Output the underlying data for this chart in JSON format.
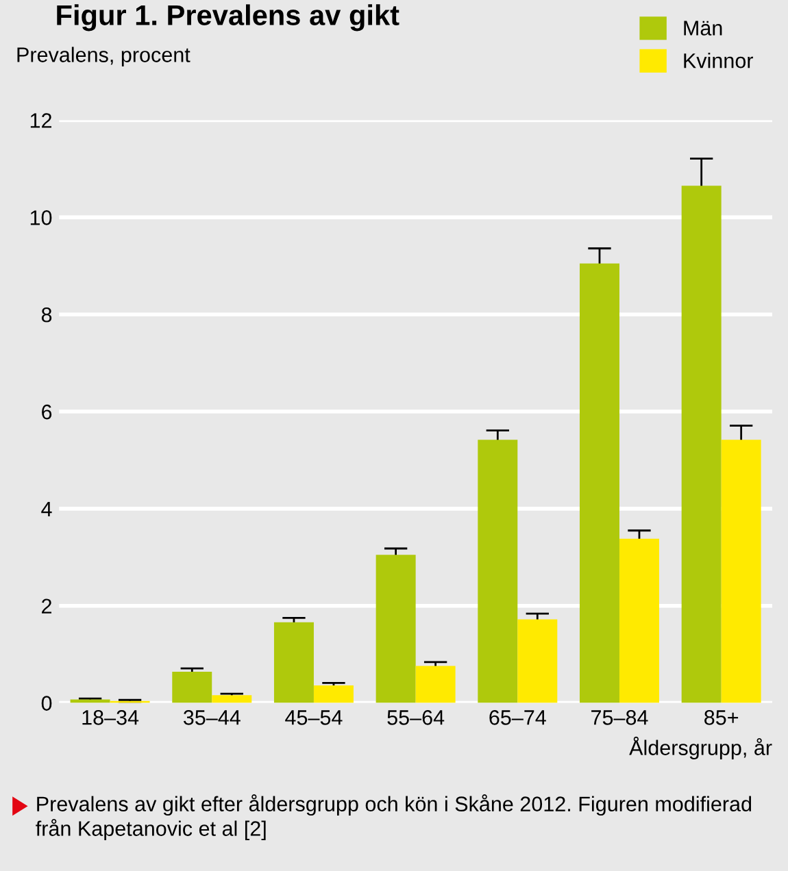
{
  "chart_data": {
    "type": "bar",
    "title": "Figur 1. Prevalens av gikt",
    "ylabel": "Prevalens, procent",
    "xlabel": "Åldersgrupp, år",
    "categories": [
      "18–34",
      "35–44",
      "45–54",
      "55–64",
      "65–74",
      "75–84",
      "85+"
    ],
    "series": [
      {
        "name": "Män",
        "color": "#afc90c",
        "values": [
          0.07,
          0.64,
          1.66,
          3.05,
          5.42,
          9.05,
          10.65
        ],
        "errors": [
          0.02,
          0.07,
          0.09,
          0.13,
          0.19,
          0.31,
          0.56
        ]
      },
      {
        "name": "Kvinnor",
        "color": "#ffea00",
        "values": [
          0.04,
          0.16,
          0.36,
          0.76,
          1.72,
          3.38,
          5.42
        ],
        "errors": [
          0.02,
          0.03,
          0.05,
          0.08,
          0.12,
          0.17,
          0.29
        ]
      }
    ],
    "ylim": [
      0,
      12
    ],
    "yticks": [
      0,
      2,
      4,
      6,
      8,
      10,
      12
    ],
    "grid": "y",
    "legend": "top right",
    "annotations": [
      "Prevalens av gikt efter åldersgrupp och kön i Skåne 2012. Figuren modifierad från Kapetanovic et al [2]"
    ]
  }
}
